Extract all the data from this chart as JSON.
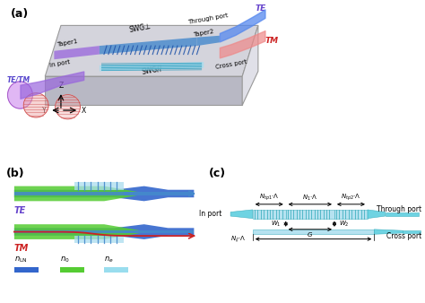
{
  "bg_color": "#ffffff",
  "panel_a_label": "(a)",
  "panel_b_label": "(b)",
  "panel_c_label": "(c)",
  "chip_top_color": "#d4d4dc",
  "chip_front_color": "#b8b8c4",
  "chip_side_color": "#e0e0e8",
  "chip_edge_color": "#999999",
  "wg_blue": "#4477cc",
  "wg_blue_dark": "#2255aa",
  "wg_blue_light": "#88aadd",
  "wg_cyan": "#33bbcc",
  "wg_cyan_light": "#77ddee",
  "wg_green": "#55cc33",
  "wg_purple": "#9955dd",
  "wg_pink": "#dd88bb",
  "wg_red": "#cc2222",
  "te_color": "#6644cc",
  "tm_color": "#cc2222",
  "text_black": "#111111",
  "swg_line_color": "#2299bb",
  "n_ln_color": "#3366cc",
  "n_0_color": "#55cc33",
  "n_e_color": "#99ddee"
}
